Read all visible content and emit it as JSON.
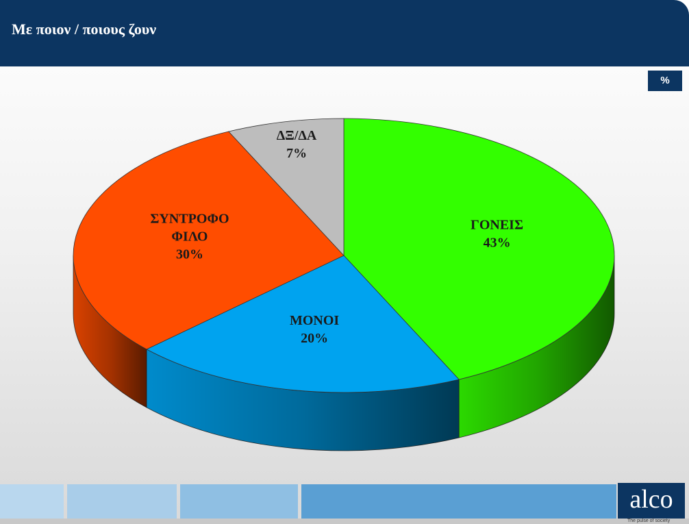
{
  "header": {
    "title": "Με ποιον / ποιους ζουν",
    "unit_label": "%"
  },
  "chart_data": {
    "type": "pie",
    "categories": [
      "ΓΟΝΕΙΣ",
      "ΜΟΝΟΙ",
      "ΣΥΝΤΡΟΦΟ ΦΙΛΟ",
      "ΔΞ/ΔΑ"
    ],
    "values": [
      43,
      20,
      30,
      7
    ],
    "value_labels": [
      "43%",
      "20%",
      "30%",
      "7%"
    ],
    "colors": [
      "#33ff00",
      "#00a3ef",
      "#ff4d00",
      "#bdbdbd"
    ]
  },
  "footer": {
    "logo": "alco",
    "tagline": "The pulse of society"
  }
}
